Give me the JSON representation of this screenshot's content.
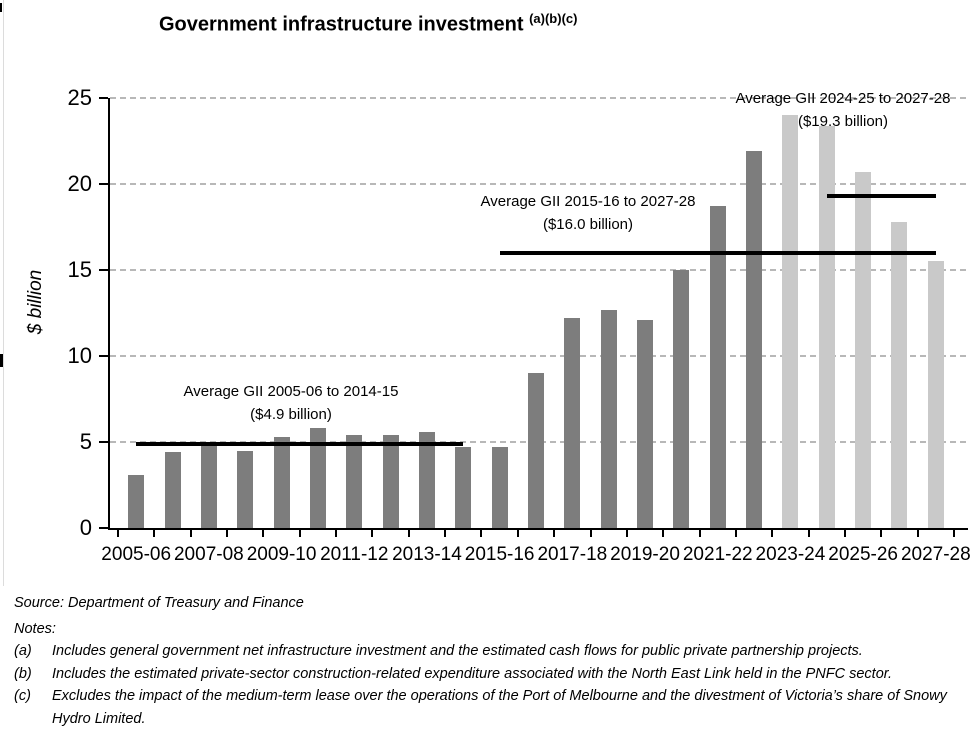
{
  "figure": {
    "title": "Government infrastructure investment",
    "title_superscript": "(a)(b)(c)"
  },
  "chart_data": {
    "type": "bar",
    "title": "Government infrastructure investment (a)(b)(c)",
    "xlabel": "",
    "ylabel": "$ billion",
    "ylim": [
      0,
      25
    ],
    "yticks": [
      0,
      5,
      10,
      15,
      20,
      25
    ],
    "grid": "horizontal-dashed",
    "legend": "none",
    "categories": [
      "2005-06",
      "2006-07",
      "2007-08",
      "2008-09",
      "2009-10",
      "2010-11",
      "2011-12",
      "2012-13",
      "2013-14",
      "2014-15",
      "2015-16",
      "2016-17",
      "2017-18",
      "2018-19",
      "2019-20",
      "2020-21",
      "2021-22",
      "2022-23",
      "2023-24",
      "2024-25",
      "2025-26",
      "2026-27",
      "2027-28"
    ],
    "x_tick_labels": [
      "2005-06",
      "2007-08",
      "2009-10",
      "2011-12",
      "2013-14",
      "2015-16",
      "2017-18",
      "2019-20",
      "2021-22",
      "2023-24",
      "2025-26",
      "2027-28"
    ],
    "series": [
      {
        "name": "Government infrastructure investment ($ billion)",
        "values": [
          3.1,
          4.4,
          4.8,
          4.5,
          5.3,
          5.8,
          5.4,
          5.4,
          5.6,
          4.7,
          4.7,
          9.0,
          12.2,
          12.7,
          12.1,
          15.0,
          18.7,
          21.9,
          24.0,
          23.4,
          20.7,
          17.8,
          15.5
        ]
      }
    ],
    "forecast_start_category": "2023-24",
    "colors": {
      "actual_bar": "#7d7d7d",
      "forecast_bar": "#c9c9c9",
      "average_line": "#000000",
      "gridline": "#b8b8b8",
      "axis": "#000000"
    },
    "annotations": [
      {
        "line1": "Average GII 2005-06 to 2014-15",
        "line2": "($4.9 billion)",
        "value": 4.9,
        "from": "2005-06",
        "to": "2014-15"
      },
      {
        "line1": "Average GII 2015-16 to 2027-28",
        "line2": "($16.0 billion)",
        "value": 16.0,
        "from": "2015-16",
        "to": "2027-28"
      },
      {
        "line1": "Average GII 2024-25 to 2027-28",
        "line2": "($19.3 billion)",
        "value": 19.3,
        "from": "2024-25",
        "to": "2027-28"
      }
    ]
  },
  "footer": {
    "source": "Source: Department of Treasury and Finance",
    "notes_label": "Notes:",
    "notes": [
      {
        "label": "(a)",
        "text": "Includes general government net infrastructure investment and the estimated cash flows for public private partnership projects."
      },
      {
        "label": "(b)",
        "text": "Includes the estimated private-sector construction-related expenditure associated with the North East Link held in the PNFC sector."
      },
      {
        "label": "(c)",
        "text": "Excludes the impact of the medium-term lease over the operations of the Port of Melbourne and the divestment of Victoria’s share of Snowy Hydro Limited."
      }
    ]
  }
}
